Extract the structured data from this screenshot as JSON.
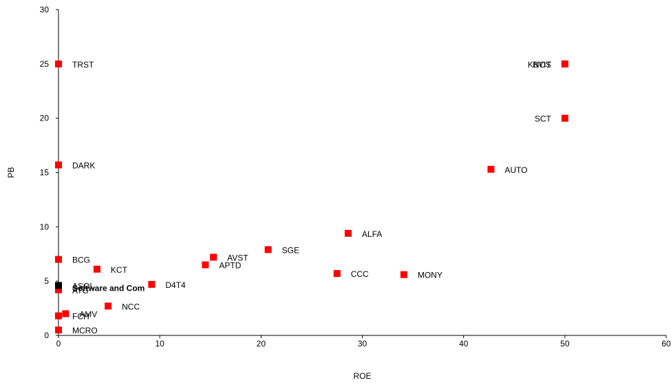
{
  "chart_data": {
    "type": "scatter",
    "title": "",
    "xlabel": "ROE",
    "ylabel": "PB",
    "xlim": [
      0,
      60
    ],
    "ylim": [
      0,
      30
    ],
    "x_ticks": [
      0,
      10,
      20,
      30,
      40,
      50,
      60
    ],
    "y_ticks": [
      0,
      5,
      10,
      15,
      20,
      25,
      30
    ],
    "grid": false,
    "legend": "none",
    "marker_color": "#ff0000",
    "highlight_color": "#000000",
    "points": [
      {
        "label": "TRST",
        "x": 0,
        "y": 25.0
      },
      {
        "label": "DARK",
        "x": 0,
        "y": 15.7
      },
      {
        "label": "BCG",
        "x": 0,
        "y": 7.0
      },
      {
        "label": "ASOL",
        "x": 0,
        "y": 4.6
      },
      {
        "label": "ATG",
        "x": 0,
        "y": 4.2
      },
      {
        "label": "FCH",
        "x": 0,
        "y": 1.8
      },
      {
        "label": "MCRO",
        "x": 0,
        "y": 0.5
      },
      {
        "label": "AMV",
        "x": 0.7,
        "y": 2.0
      },
      {
        "label": "KCT",
        "x": 3.8,
        "y": 6.1
      },
      {
        "label": "NCC",
        "x": 4.9,
        "y": 2.7
      },
      {
        "label": "D4T4",
        "x": 9.2,
        "y": 4.7
      },
      {
        "label": "APTD",
        "x": 14.5,
        "y": 6.5
      },
      {
        "label": "AVST",
        "x": 15.3,
        "y": 7.2
      },
      {
        "label": "SGE",
        "x": 20.7,
        "y": 7.9
      },
      {
        "label": "CCC",
        "x": 27.5,
        "y": 5.7
      },
      {
        "label": "ALFA",
        "x": 28.6,
        "y": 9.4
      },
      {
        "label": "MONY",
        "x": 34.1,
        "y": 5.6
      },
      {
        "label": "AUTO",
        "x": 42.7,
        "y": 15.3
      },
      {
        "label": "SCT",
        "x": 50.0,
        "y": 20.0
      },
      {
        "label": "KNOS",
        "x": 50.0,
        "y": 25.0
      },
      {
        "label": "BYIT",
        "x": 50.0,
        "y": 25.0
      }
    ],
    "highlight": {
      "label": "Software and Com",
      "x": 0,
      "y": 4.6
    }
  }
}
